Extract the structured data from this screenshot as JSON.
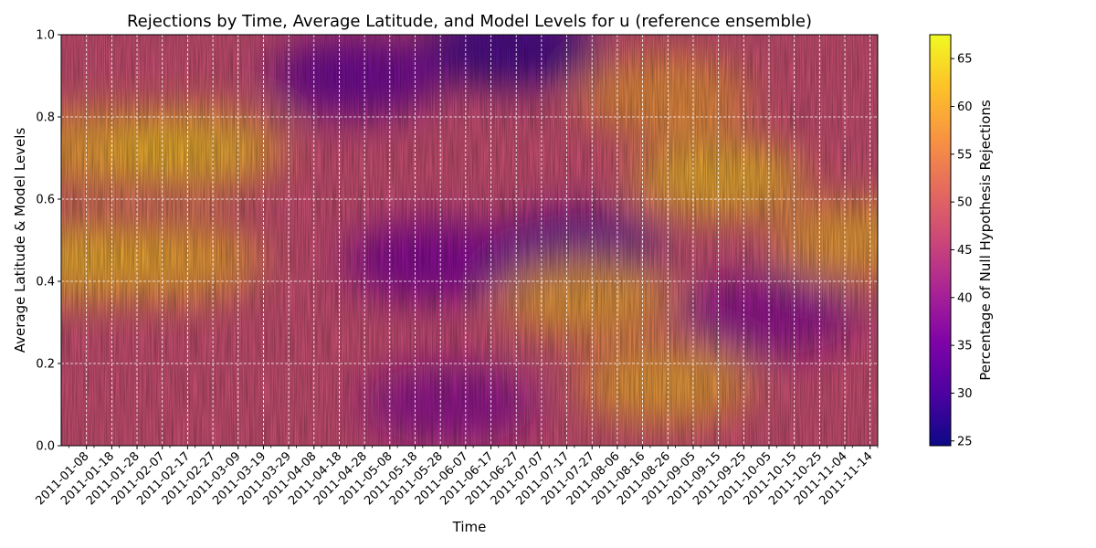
{
  "chart_data": {
    "type": "heatmap",
    "title": "Rejections by Time, Average Latitude, and Model Levels for u (reference ensemble)",
    "xlabel": "Time",
    "ylabel": "Average Latitude & Model Levels",
    "colorbar_label": "Percentage of Null Hypothesis Rejections",
    "colormap": "plasma",
    "x_range": [
      "2010-12-29",
      "2011-11-17"
    ],
    "x_ticks": [
      "2011-01-08",
      "2011-01-18",
      "2011-01-28",
      "2011-02-07",
      "2011-02-17",
      "2011-02-27",
      "2011-03-09",
      "2011-03-19",
      "2011-03-29",
      "2011-04-08",
      "2011-04-18",
      "2011-04-28",
      "2011-05-08",
      "2011-05-18",
      "2011-05-28",
      "2011-06-07",
      "2011-06-17",
      "2011-06-27",
      "2011-07-07",
      "2011-07-17",
      "2011-07-27",
      "2011-08-06",
      "2011-08-16",
      "2011-08-26",
      "2011-09-05",
      "2011-09-15",
      "2011-09-25",
      "2011-10-05",
      "2011-10-15",
      "2011-10-25",
      "2011-11-04",
      "2011-11-14"
    ],
    "y_ticks": [
      "0.0",
      "0.2",
      "0.4",
      "0.6",
      "0.8",
      "1.0"
    ],
    "y_range": [
      0,
      1
    ],
    "color_range": [
      24.5,
      67.5
    ],
    "colorbar_ticks": [
      "25",
      "30",
      "35",
      "40",
      "45",
      "50",
      "55",
      "60",
      "65"
    ],
    "grid": true,
    "regions": [
      {
        "date": "2011-01-10",
        "y": 0.45,
        "value": 62
      },
      {
        "date": "2011-01-15",
        "y": 0.72,
        "value": 60
      },
      {
        "date": "2011-02-20",
        "y": 0.72,
        "value": 62
      },
      {
        "date": "2011-02-12",
        "y": 0.45,
        "value": 60
      },
      {
        "date": "2011-04-25",
        "y": 0.9,
        "value": 33
      },
      {
        "date": "2011-06-25",
        "y": 0.97,
        "value": 28
      },
      {
        "date": "2011-07-20",
        "y": 0.47,
        "value": 32
      },
      {
        "date": "2011-05-25",
        "y": 0.45,
        "value": 36
      },
      {
        "date": "2011-07-25",
        "y": 0.36,
        "value": 60
      },
      {
        "date": "2011-08-25",
        "y": 0.15,
        "value": 60
      },
      {
        "date": "2011-09-15",
        "y": 0.65,
        "value": 62
      },
      {
        "date": "2011-10-05",
        "y": 0.32,
        "value": 38
      },
      {
        "date": "2011-11-10",
        "y": 0.5,
        "value": 60
      },
      {
        "date": "2011-08-25",
        "y": 0.85,
        "value": 58
      },
      {
        "date": "2011-06-01",
        "y": 0.1,
        "value": 38
      }
    ]
  }
}
